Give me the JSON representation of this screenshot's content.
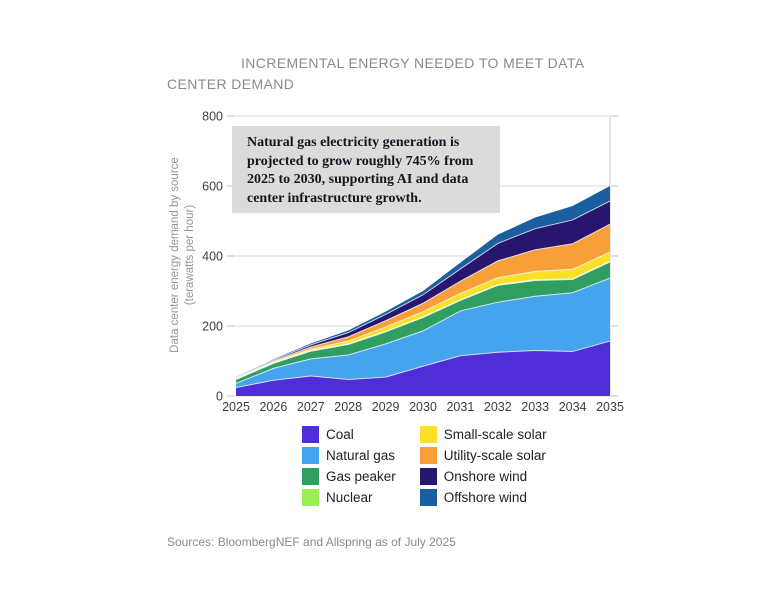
{
  "title": "INCREMENTAL ENERGY NEEDED TO MEET DATA CENTER DEMAND",
  "y_axis": {
    "label": "Data center energy demand by source",
    "sub_label": "(terawatts per hour)"
  },
  "sources": "Sources: BloombergNEF and Allspring as of July 2025",
  "chart_data": {
    "type": "area",
    "stacked": true,
    "title": "INCREMENTAL ENERGY NEEDED TO MEET DATA CENTER DEMAND",
    "xlabel": "",
    "ylabel": "Data center energy demand by source (terawatts per hour)",
    "x": [
      2025,
      2026,
      2027,
      2028,
      2029,
      2030,
      2031,
      2032,
      2033,
      2034,
      2035
    ],
    "ylim": [
      0,
      800
    ],
    "yticks": [
      0,
      200,
      400,
      600,
      800
    ],
    "grid": true,
    "legend_position": "bottom",
    "annotation": "Natural gas electricity generation is\nprojected to grow roughly 745% from\n2025 to 2030, supporting AI and data\ncenter infrastructure growth.",
    "series": [
      {
        "name": "Coal",
        "color": "#4f2dd8",
        "values": [
          24,
          45,
          57,
          47,
          54,
          85,
          115,
          125,
          130,
          127,
          157
        ]
      },
      {
        "name": "Natural gas",
        "color": "#46a3ee",
        "values": [
          12,
          34,
          49,
          70,
          95,
          101,
          128,
          143,
          155,
          168,
          180
        ]
      },
      {
        "name": "Gas peaker",
        "color": "#2f9e60",
        "values": [
          11,
          14,
          22,
          30,
          34,
          38,
          30,
          48,
          45,
          38,
          46
        ]
      },
      {
        "name": "Nuclear",
        "color": "#9cee55",
        "values": [
          1,
          2,
          2,
          2,
          2,
          2,
          2,
          2,
          2,
          2,
          2
        ]
      },
      {
        "name": "Small-scale solar",
        "color": "#fbe02a",
        "values": [
          2,
          2,
          4,
          8,
          12,
          15,
          18,
          20,
          24,
          27,
          26
        ]
      },
      {
        "name": "Utility-scale solar",
        "color": "#f7a03a",
        "values": [
          2,
          3,
          6,
          12,
          18,
          24,
          35,
          48,
          62,
          73,
          80
        ]
      },
      {
        "name": "Onshore wind",
        "color": "#27156e",
        "values": [
          2,
          3,
          6,
          12,
          18,
          24,
          35,
          50,
          60,
          68,
          66
        ]
      },
      {
        "name": "Offshore wind",
        "color": "#1c5fa0",
        "values": [
          1,
          2,
          4,
          6,
          8,
          11,
          18,
          25,
          32,
          40,
          43
        ]
      }
    ]
  }
}
